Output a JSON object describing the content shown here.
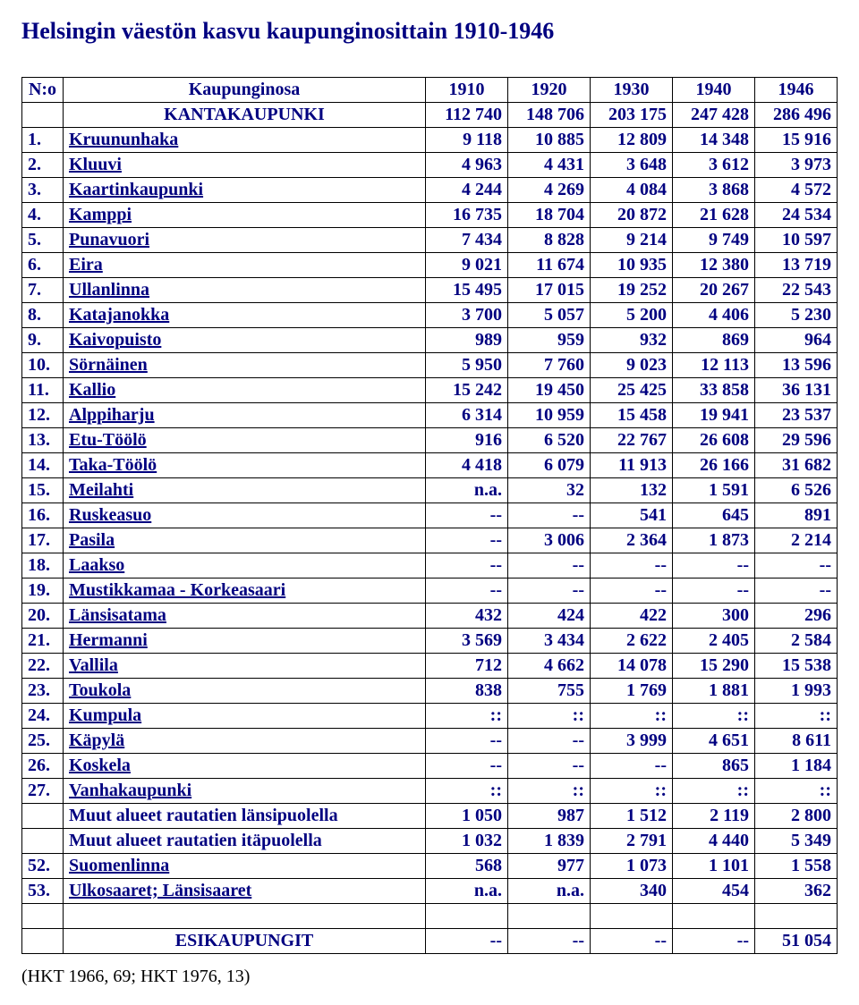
{
  "title": "Helsingin väestön kasvu kaupunginosittain 1910-1946",
  "colors": {
    "heading": "#000080",
    "link": "#000080",
    "border": "#000000",
    "background": "#ffffff"
  },
  "table": {
    "columns": [
      "N:o",
      "Kaupunginosa",
      "1910",
      "1920",
      "1930",
      "1940",
      "1946"
    ],
    "first_section": {
      "no": "",
      "name": "KANTAKAUPUNKI",
      "link": false,
      "values": [
        "112 740",
        "148 706",
        "203 175",
        "247 428",
        "286 496"
      ]
    },
    "rows": [
      {
        "no": "1.",
        "name": "Kruununhaka",
        "link": true,
        "values": [
          "9 118",
          "10 885",
          "12 809",
          "14 348",
          "15 916"
        ]
      },
      {
        "no": "2.",
        "name": "Kluuvi",
        "link": true,
        "values": [
          "4 963",
          "4 431",
          "3 648",
          "3 612",
          "3 973"
        ]
      },
      {
        "no": "3.",
        "name": "Kaartinkaupunki",
        "link": true,
        "values": [
          "4 244",
          "4 269",
          "4 084",
          "3 868",
          "4 572"
        ]
      },
      {
        "no": "4.",
        "name": "Kamppi",
        "link": true,
        "values": [
          "16 735",
          "18 704",
          "20 872",
          "21 628",
          "24 534"
        ]
      },
      {
        "no": "5.",
        "name": "Punavuori",
        "link": true,
        "values": [
          "7 434",
          "8 828",
          "9 214",
          "9 749",
          "10 597"
        ]
      },
      {
        "no": "6.",
        "name": "Eira",
        "link": true,
        "values": [
          "9 021",
          "11 674",
          "10 935",
          "12 380",
          "13 719"
        ]
      },
      {
        "no": "7.",
        "name": "Ullanlinna",
        "link": true,
        "values": [
          "15 495",
          "17 015",
          "19 252",
          "20 267",
          "22 543"
        ]
      },
      {
        "no": "8.",
        "name": "Katajanokka",
        "link": true,
        "values": [
          "3 700",
          "5 057",
          "5 200",
          "4 406",
          "5 230"
        ]
      },
      {
        "no": "9.",
        "name": "Kaivopuisto",
        "link": true,
        "values": [
          "989",
          "959",
          "932",
          "869",
          "964"
        ]
      },
      {
        "no": "10.",
        "name": "Sörnäinen",
        "link": true,
        "values": [
          "5 950",
          "7 760",
          "9 023",
          "12 113",
          "13 596"
        ]
      },
      {
        "no": "11.",
        "name": "Kallio",
        "link": true,
        "values": [
          "15 242",
          "19 450",
          "25 425",
          "33 858",
          "36 131"
        ]
      },
      {
        "no": "12.",
        "name": "Alppiharju",
        "link": true,
        "values": [
          "6 314",
          "10 959",
          "15 458",
          "19 941",
          "23 537"
        ]
      },
      {
        "no": "13.",
        "name": "Etu-Töölö",
        "link": true,
        "values": [
          "916",
          "6 520",
          "22 767",
          "26 608",
          "29 596"
        ]
      },
      {
        "no": "14.",
        "name": "Taka-Töölö",
        "link": true,
        "values": [
          "4 418",
          "6 079",
          "11 913",
          "26 166",
          "31 682"
        ]
      },
      {
        "no": "15.",
        "name": "Meilahti",
        "link": true,
        "values": [
          "n.a.",
          "32",
          "132",
          "1 591",
          "6 526"
        ]
      },
      {
        "no": "16.",
        "name": "Ruskeasuo",
        "link": true,
        "values": [
          "--",
          "--",
          "541",
          "645",
          "891"
        ]
      },
      {
        "no": "17.",
        "name": "Pasila",
        "link": true,
        "values": [
          "--",
          "3 006",
          "2 364",
          "1 873",
          "2 214"
        ]
      },
      {
        "no": "18.",
        "name": "Laakso",
        "link": true,
        "values": [
          "--",
          "--",
          "--",
          "--",
          "--"
        ]
      },
      {
        "no": "19.",
        "name": "Mustikkamaa - Korkeasaari",
        "link": true,
        "values": [
          "--",
          "--",
          "--",
          "--",
          "--"
        ]
      },
      {
        "no": "20.",
        "name": "Länsisatama",
        "link": true,
        "values": [
          "432",
          "424",
          "422",
          "300",
          "296"
        ]
      },
      {
        "no": "21.",
        "name": "Hermanni",
        "link": true,
        "values": [
          "3 569",
          "3 434",
          "2 622",
          "2 405",
          "2 584"
        ]
      },
      {
        "no": "22.",
        "name": "Vallila",
        "link": true,
        "values": [
          "712",
          "4 662",
          "14 078",
          "15 290",
          "15 538"
        ]
      },
      {
        "no": "23.",
        "name": "Toukola",
        "link": true,
        "values": [
          "838",
          "755",
          "1 769",
          "1 881",
          "1 993"
        ]
      },
      {
        "no": "24.",
        "name": "Kumpula",
        "link": true,
        "values": [
          "::",
          "::",
          "::",
          "::",
          "::"
        ]
      },
      {
        "no": "25.",
        "name": "Käpylä",
        "link": true,
        "values": [
          "--",
          "--",
          "3 999",
          "4 651",
          "8 611"
        ]
      },
      {
        "no": "26.",
        "name": "Koskela",
        "link": true,
        "values": [
          "--",
          "--",
          "--",
          "865",
          "1 184"
        ]
      },
      {
        "no": "27.",
        "name": "Vanhakaupunki",
        "link": true,
        "values": [
          "::",
          "::",
          "::",
          "::",
          "::"
        ]
      },
      {
        "no": "",
        "name": "Muut alueet rautatien länsipuolella",
        "link": false,
        "values": [
          "1 050",
          "987",
          "1 512",
          "2 119",
          "2 800"
        ]
      },
      {
        "no": "",
        "name": "Muut alueet rautatien itäpuolella",
        "link": false,
        "values": [
          "1 032",
          "1 839",
          "2 791",
          "4 440",
          "5 349"
        ]
      },
      {
        "no": "52.",
        "name": "Suomenlinna",
        "link": true,
        "values": [
          "568",
          "977",
          "1 073",
          "1 101",
          "1 558"
        ]
      },
      {
        "no": "53.",
        "name": "Ulkosaaret; Länsisaaret",
        "link": true,
        "values": [
          "n.a.",
          "n.a.",
          "340",
          "454",
          "362"
        ]
      }
    ],
    "second_section": {
      "no": "",
      "name": "ESIKAUPUNGIT",
      "link": false,
      "values": [
        "--",
        "--",
        "--",
        "--",
        "51 054"
      ]
    }
  },
  "source": "(HKT 1966, 69; HKT 1976, 13)"
}
